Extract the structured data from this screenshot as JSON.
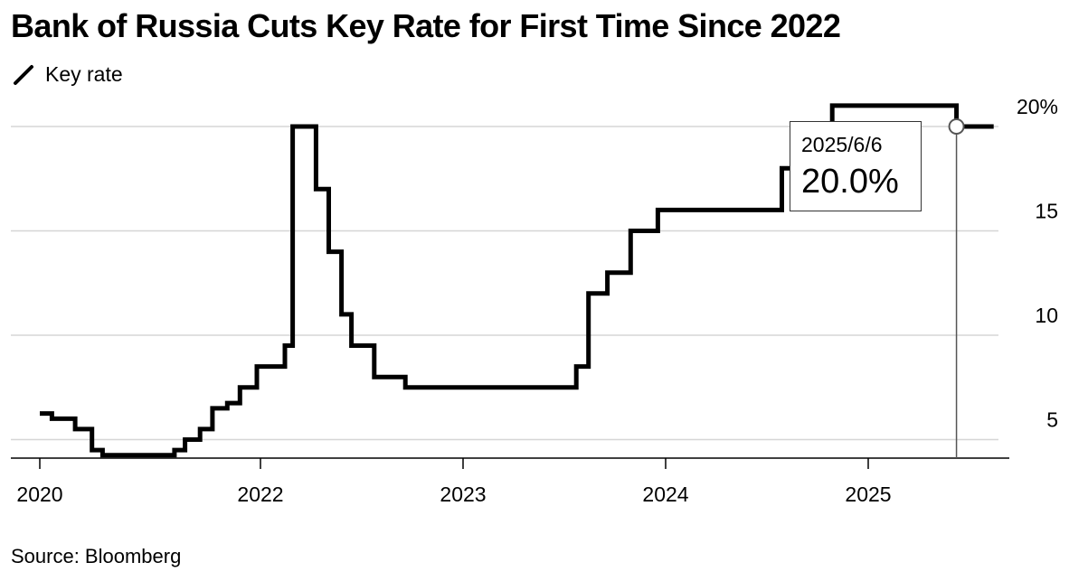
{
  "title": "Bank of Russia Cuts Key Rate for First Time Since 2022",
  "legend": {
    "label": "Key rate",
    "color": "#000000"
  },
  "source": "Source: Bloomberg",
  "tooltip": {
    "date": "2025/6/6",
    "value": "20.0%"
  },
  "chart_data": {
    "type": "line",
    "step": true,
    "series": [
      {
        "name": "Key rate",
        "points": [
          [
            "2020-01-01",
            6.25
          ],
          [
            "2020-02-10",
            6.0
          ],
          [
            "2020-04-27",
            5.5
          ],
          [
            "2020-06-22",
            4.5
          ],
          [
            "2020-07-27",
            4.25
          ],
          [
            "2021-03-22",
            4.5
          ],
          [
            "2021-04-26",
            5.0
          ],
          [
            "2021-06-15",
            5.5
          ],
          [
            "2021-07-26",
            6.5
          ],
          [
            "2021-09-13",
            6.75
          ],
          [
            "2021-10-25",
            7.5
          ],
          [
            "2021-12-20",
            8.5
          ],
          [
            "2022-02-14",
            9.5
          ],
          [
            "2022-02-28",
            20.0
          ],
          [
            "2022-04-11",
            17.0
          ],
          [
            "2022-05-04",
            14.0
          ],
          [
            "2022-05-27",
            11.0
          ],
          [
            "2022-06-14",
            9.5
          ],
          [
            "2022-07-25",
            8.0
          ],
          [
            "2022-09-19",
            7.5
          ],
          [
            "2023-07-24",
            8.5
          ],
          [
            "2023-08-15",
            12.0
          ],
          [
            "2023-09-18",
            13.0
          ],
          [
            "2023-10-30",
            15.0
          ],
          [
            "2023-12-18",
            16.0
          ],
          [
            "2024-07-29",
            18.0
          ],
          [
            "2024-10-28",
            21.0
          ],
          [
            "2025-06-09",
            20.0
          ],
          [
            "2025-08-15",
            20.0
          ]
        ]
      }
    ],
    "x_tick_labels": [
      "2020",
      "2022",
      "2023",
      "2024",
      "2025"
    ],
    "y_tick_labels": [
      "5",
      "10",
      "15",
      "20%"
    ],
    "y_ticks": [
      5,
      10,
      15,
      20
    ],
    "ylim": [
      4,
      21
    ],
    "grid": true
  }
}
